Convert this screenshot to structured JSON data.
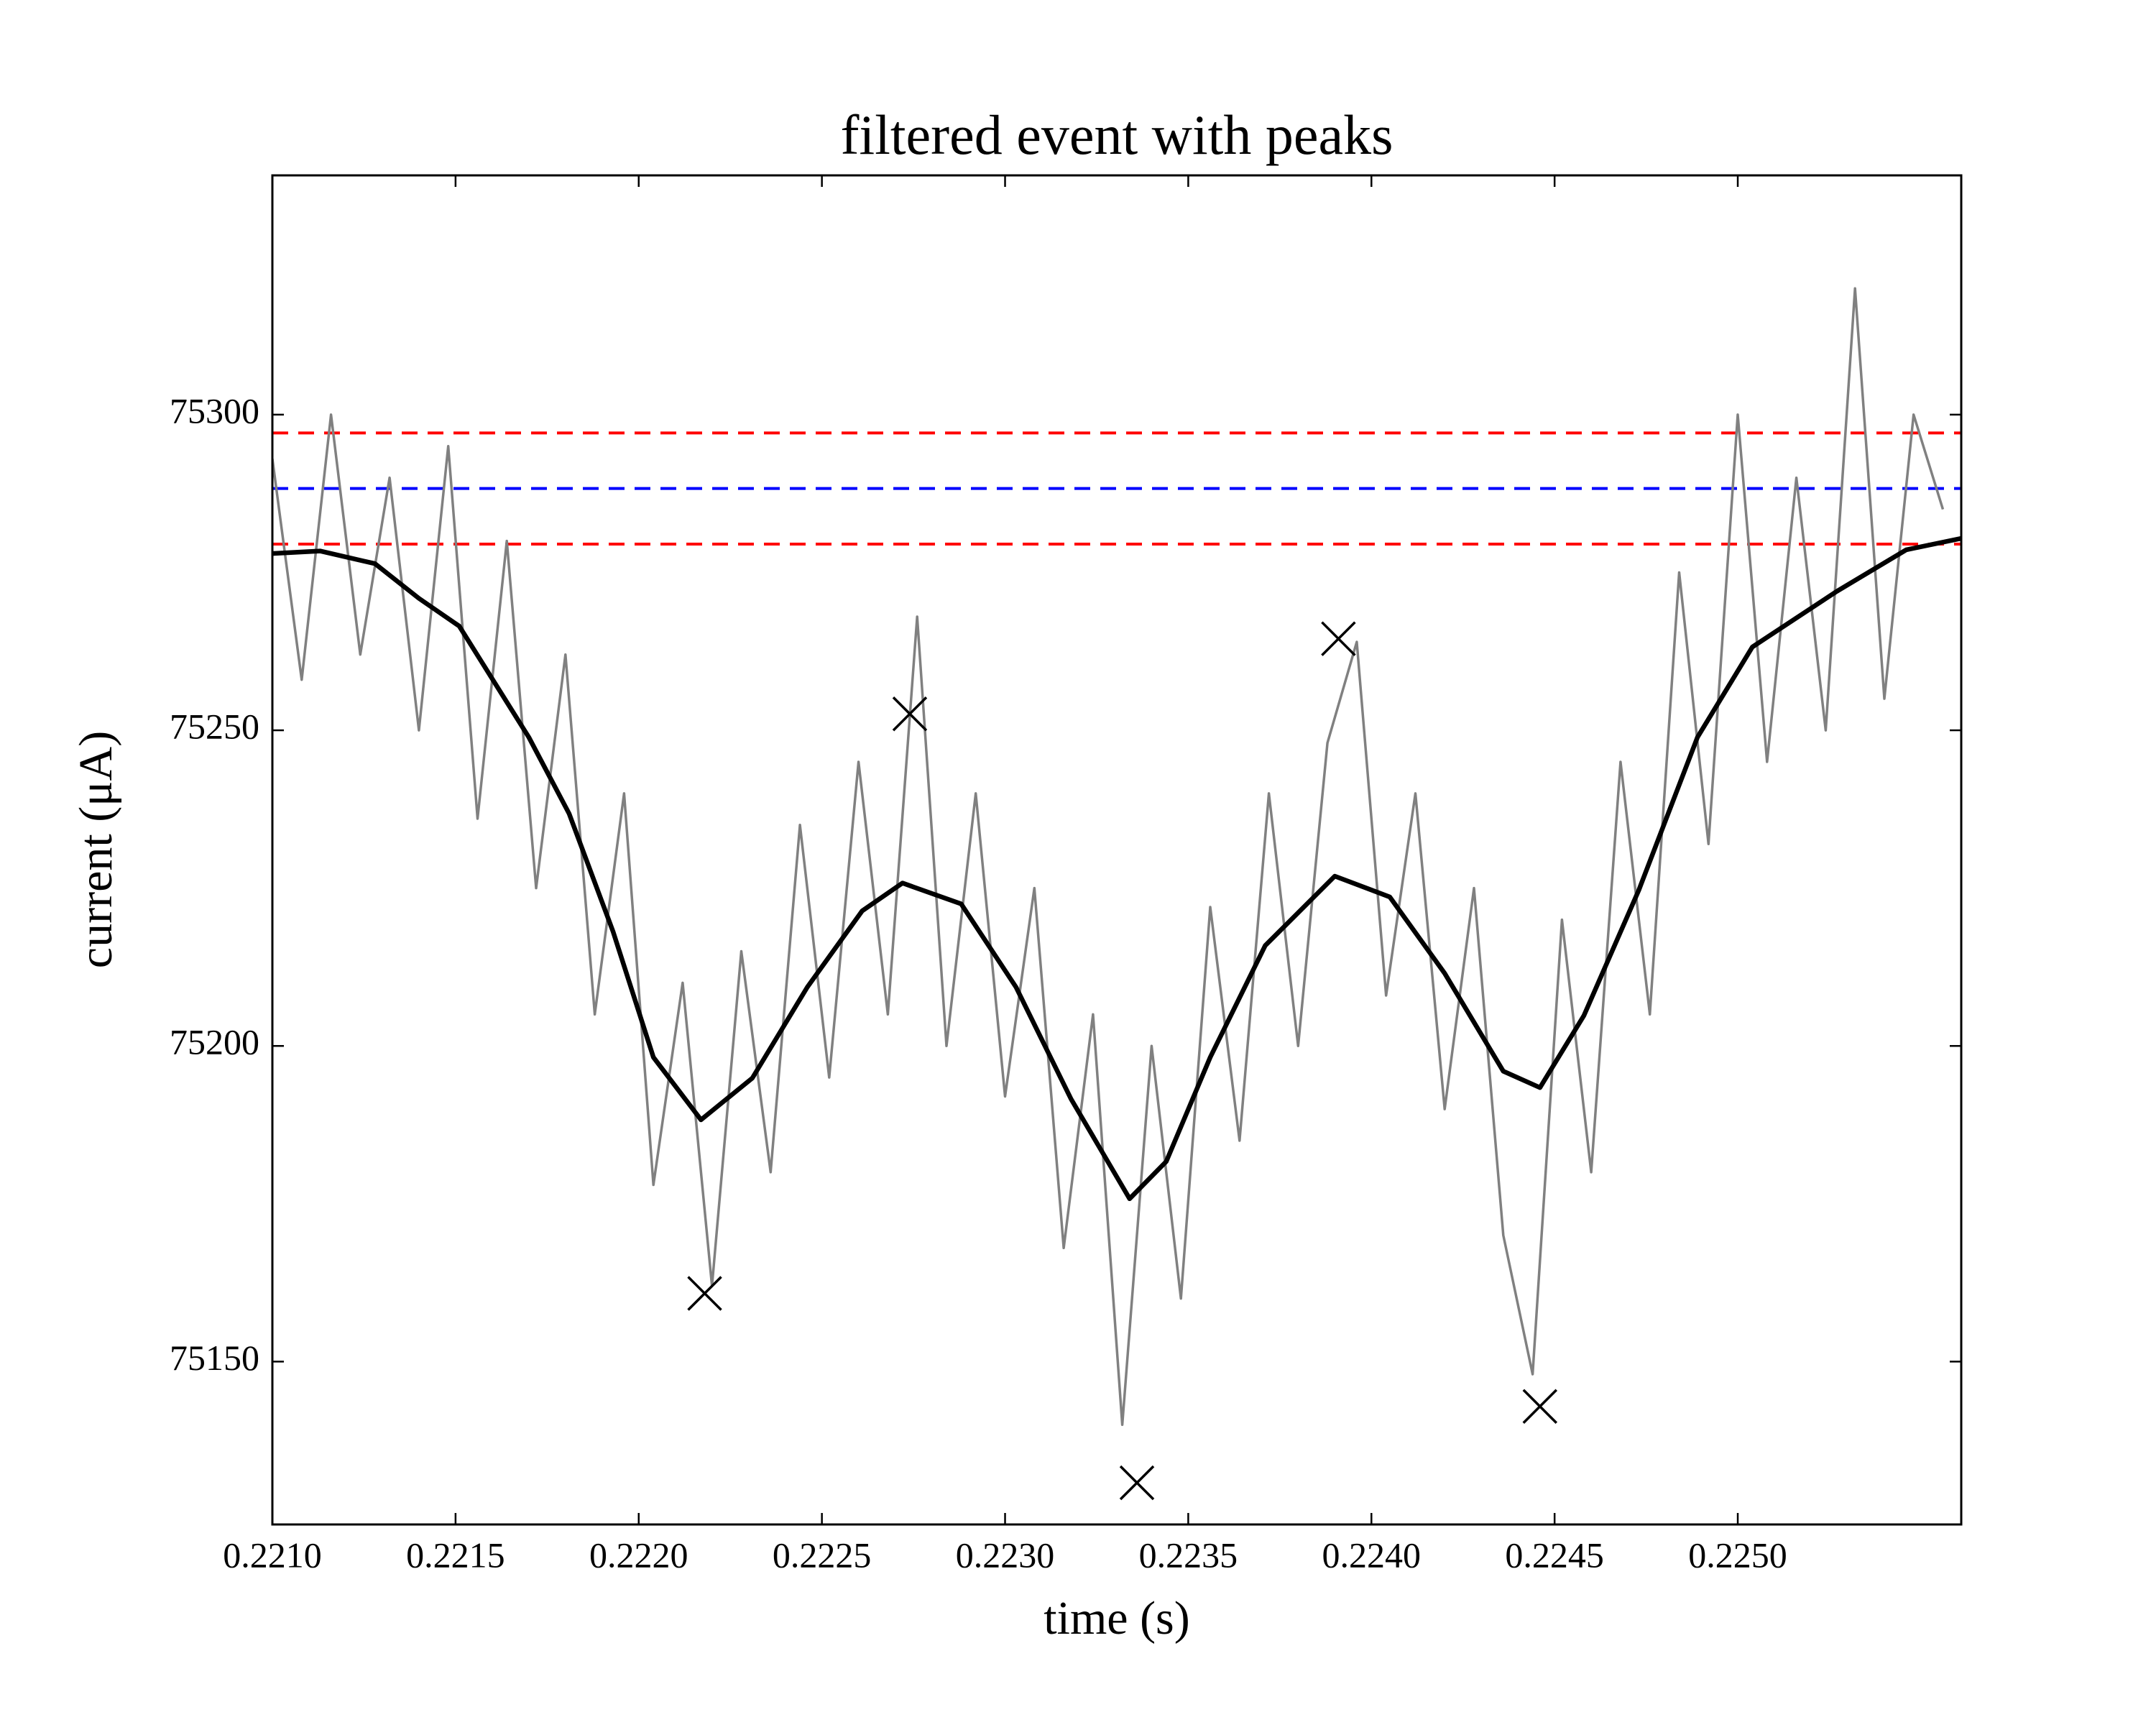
{
  "chart_data": {
    "type": "line",
    "title": "filtered event with peaks",
    "xlabel": "time (s)",
    "ylabel": "current (μA)",
    "xlim": [
      0.221,
      0.22561
    ],
    "ylim": [
      75124.2,
      75337.9
    ],
    "xticks": [
      {
        "value": 0.221,
        "label": "0.2210"
      },
      0.2215,
      {
        "value": 0.222,
        "label": "0.2220"
      },
      0.2225,
      {
        "value": 0.223,
        "label": "0.2230"
      },
      0.2235,
      {
        "value": 0.224,
        "label": "0.2240"
      },
      0.2245,
      {
        "value": 0.225,
        "label": "0.2250"
      }
    ],
    "yticks": [
      75150,
      75200,
      75250,
      75300
    ],
    "grid": false,
    "hlines": [
      {
        "value": 75297.1,
        "color": "#ff0000"
      },
      {
        "value": 75288.3,
        "color": "#0000ff"
      },
      {
        "value": 75279.5,
        "color": "#ff0000"
      }
    ],
    "series": [
      {
        "color": "#808080",
        "x": [
          0.221,
          0.22108,
          0.22116,
          0.22124,
          0.22132,
          0.2214,
          0.22148,
          0.22156,
          0.22164,
          0.22172,
          0.2218,
          0.22188,
          0.22196,
          0.22204,
          0.22212,
          0.2222,
          0.22228,
          0.22236,
          0.22244,
          0.22252,
          0.2226,
          0.22268,
          0.22276,
          0.22284,
          0.22292,
          0.223,
          0.22308,
          0.22316,
          0.22324,
          0.22332,
          0.2234,
          0.22348,
          0.22356,
          0.22364,
          0.22372,
          0.2238,
          0.22388,
          0.22396,
          0.22404,
          0.22412,
          0.2242,
          0.22428,
          0.22436,
          0.22444,
          0.22452,
          0.2246,
          0.22468,
          0.22476,
          0.22484,
          0.22492,
          0.225,
          0.22508,
          0.22516,
          0.22524,
          0.22532,
          0.2254,
          0.22548,
          0.22556
        ],
        "values": [
          75293,
          75258,
          75300,
          75262,
          75290,
          75250,
          75295,
          75236,
          75280,
          75225,
          75262,
          75205,
          75240,
          75178,
          75210,
          75162,
          75215,
          75180,
          75235,
          75195,
          75245,
          75205,
          75268,
          75200,
          75240,
          75192,
          75225,
          75168,
          75205,
          75140,
          75200,
          75160,
          75222,
          75185,
          75240,
          75200,
          75248,
          75264,
          75208,
          75240,
          75190,
          75225,
          75170,
          75148,
          75220,
          75180,
          75245,
          75205,
          75275,
          75232,
          75300,
          75245,
          75290,
          75250,
          75320,
          75255,
          75300,
          75285
        ]
      },
      {
        "color": "#000000",
        "x": [
          0.221,
          0.22113,
          0.22128,
          0.2214,
          0.22151,
          0.2217,
          0.22181,
          0.22193,
          0.22204,
          0.22217,
          0.22231,
          0.22246,
          0.22261,
          0.22272,
          0.22288,
          0.22303,
          0.22318,
          0.22334,
          0.22344,
          0.22356,
          0.22371,
          0.2239,
          0.22405,
          0.2242,
          0.22436,
          0.22446,
          0.22458,
          0.22473,
          0.22489,
          0.22504,
          0.22527,
          0.22546,
          0.22561
        ],
        "values": [
          75278,
          75278.4,
          75276.4,
          75270.9,
          75266.5,
          75248.9,
          75236.8,
          75218.1,
          75198.2,
          75188.3,
          75194.9,
          75209.3,
          75221.4,
          75225.8,
          75222.5,
          75209.3,
          75191.6,
          75175.8,
          75181.7,
          75198.2,
          75215.9,
          75226.9,
          75223.6,
          75211.5,
          75196,
          75193.4,
          75204.8,
          75224.7,
          75248.9,
          75263.2,
          75272,
          75278.6,
          75280.4
        ]
      },
      {
        "color": "#000000",
        "marker": "x",
        "x": [
          0.22218,
          0.22274,
          0.22336,
          0.22391,
          0.22446
        ],
        "values": [
          75160.8,
          75252.6,
          75130.8,
          75264.5,
          75142.9
        ]
      }
    ]
  }
}
